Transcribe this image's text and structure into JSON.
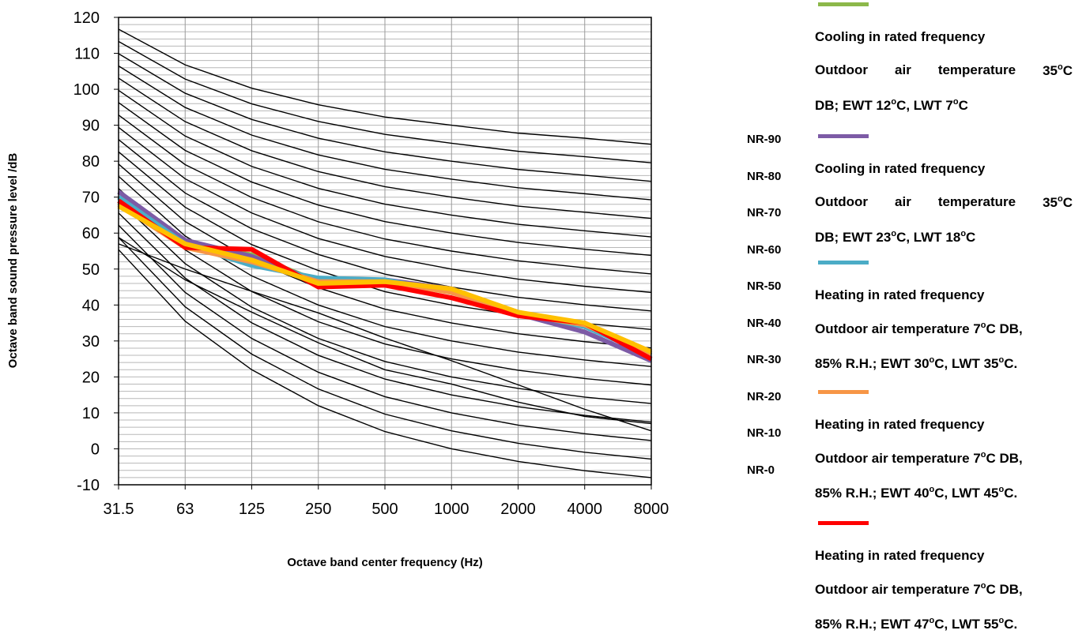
{
  "chart_data": {
    "type": "line",
    "xlabel": "Octave band center frequency (Hz)",
    "ylabel": "Octave band sound pressure level /dB",
    "categories": [
      "31.5",
      "63",
      "125",
      "250",
      "500",
      "1000",
      "2000",
      "4000",
      "8000"
    ],
    "ylim": [
      -10,
      120
    ],
    "y_ticks": [
      -10,
      0,
      10,
      20,
      30,
      40,
      50,
      60,
      70,
      80,
      90,
      100,
      110,
      120
    ],
    "grid": true,
    "legend_position": "right",
    "nr_curves": [
      {
        "name": "NR-0",
        "values": [
          55.4,
          35.5,
          22.0,
          12.0,
          4.8,
          0.0,
          -3.5,
          -6.1,
          -8.0
        ]
      },
      {
        "name": "NR-10",
        "values": [
          62.2,
          43.5,
          30.7,
          21.3,
          14.5,
          10.0,
          6.6,
          4.2,
          2.3
        ]
      },
      {
        "name": "NR-20",
        "values": [
          69.0,
          51.5,
          39.4,
          30.7,
          24.3,
          20.0,
          16.8,
          14.4,
          12.6
        ]
      },
      {
        "name": "NR-30",
        "values": [
          75.8,
          59.2,
          48.1,
          40.0,
          34.0,
          30.0,
          26.9,
          24.7,
          22.9
        ]
      },
      {
        "name": "NR-40",
        "values": [
          82.6,
          67.2,
          56.8,
          49.6,
          43.7,
          40.0,
          37.1,
          34.9,
          33.2
        ]
      },
      {
        "name": "NR-50",
        "values": [
          89.4,
          75.1,
          65.6,
          58.5,
          53.5,
          50.0,
          47.2,
          45.2,
          43.5
        ]
      },
      {
        "name": "NR-60",
        "values": [
          96.3,
          83.0,
          74.2,
          67.8,
          63.2,
          60.0,
          57.4,
          55.5,
          53.8
        ]
      },
      {
        "name": "NR-70",
        "values": [
          103.1,
          91.0,
          82.9,
          77.1,
          72.9,
          70.0,
          67.5,
          65.8,
          64.1
        ]
      },
      {
        "name": "NR-80",
        "values": [
          109.9,
          98.9,
          91.6,
          86.4,
          82.6,
          80.0,
          77.7,
          76.1,
          74.4
        ]
      },
      {
        "name": "NR-90",
        "values": [
          116.7,
          106.8,
          100.3,
          95.7,
          92.3,
          90.0,
          87.8,
          86.4,
          84.7
        ]
      },
      {
        "name": "",
        "values": [
          57.0,
          50.0,
          43.8,
          37.8,
          30.8,
          24.5,
          17.8,
          11.0,
          5.0
        ]
      },
      {
        "name": "",
        "values": [
          58.8,
          47.0,
          38.0,
          29.5,
          22.0,
          18.0,
          13.0,
          9.0,
          7.0
        ]
      }
    ],
    "nr_labels": [
      "NR-90",
      "NR-80",
      "NR-70",
      "NR-60",
      "NR-50",
      "NR-40",
      "NR-30",
      "NR-20",
      "NR-10",
      "NR-0"
    ],
    "series": [
      {
        "name": "Cooling in rated frequency Outdoor air temperature 35°C DB; EWT 12°C, LWT 7°C",
        "color": "#8CB84A",
        "values": [
          68.5,
          56.5,
          54.0,
          46.5,
          46.5,
          44.0,
          38.0,
          34.0,
          26.5
        ]
      },
      {
        "name": "Cooling in rated frequency Outdoor air temperature 35°C DB; EWT 23°C, LWT 18°C",
        "color": "#7D5BA6",
        "values": [
          71.5,
          58.0,
          53.5,
          46.5,
          47.0,
          44.5,
          37.5,
          32.5,
          24.5
        ]
      },
      {
        "name": "Heating in rated frequency Outdoor air temperature 7°C DB, 85% R.H.; EWT 30°C, LWT 35°C.",
        "color": "#4BACC6",
        "values": [
          70.0,
          57.0,
          51.0,
          47.5,
          47.0,
          43.5,
          38.0,
          34.0,
          26.0
        ]
      },
      {
        "name": "Heating in rated frequency Outdoor air temperature 7°C DB, 85% R.H.; EWT 40°C, LWT 45°C.",
        "color": "#F79646",
        "values": [
          68.0,
          56.0,
          52.0,
          46.5,
          46.5,
          43.5,
          37.5,
          34.5,
          26.5
        ]
      },
      {
        "name": "Heating in rated frequency Outdoor air temperature 7°C DB, 85% R.H.; EWT 47°C, LWT 55°C.",
        "color": "#FF0000",
        "values": [
          69.0,
          56.0,
          55.5,
          45.0,
          45.5,
          42.0,
          37.0,
          35.0,
          25.0
        ]
      },
      {
        "name": "",
        "color": "#FFC000",
        "values": [
          67.5,
          57.0,
          52.5,
          46.0,
          46.5,
          44.5,
          38.0,
          35.0,
          27.0
        ]
      }
    ]
  },
  "legend": [
    {
      "color": "#8CB84A",
      "line1": "Cooling in rated frequency",
      "line2": [
        "Outdoor",
        "air",
        "temperature",
        "35",
        "o",
        "C"
      ],
      "line3": [
        "DB; EWT 12",
        "o",
        "C, LWT 7",
        "o",
        "C"
      ]
    },
    {
      "color": "#7D5BA6",
      "line1": "Cooling in rated frequency",
      "line2": [
        "Outdoor",
        "air",
        "temperature",
        "35",
        "o",
        "C"
      ],
      "line3": [
        "DB; EWT 23",
        "o",
        "C, LWT 18",
        "o",
        "C"
      ]
    },
    {
      "color": "#4BACC6",
      "line1": "Heating in rated frequency",
      "line2": [
        "Outdoor air temperature 7",
        "o",
        "C DB,"
      ],
      "line3": [
        "85% R.H.; EWT 30",
        "o",
        "C, LWT 35",
        "o",
        "C."
      ]
    },
    {
      "color": "#F79646",
      "line1": "Heating in rated frequency",
      "line2": [
        "Outdoor air temperature 7",
        "o",
        "C DB,"
      ],
      "line3": [
        "85% R.H.; EWT 40",
        "o",
        "C, LWT 45",
        "o",
        "C."
      ]
    },
    {
      "color": "#FF0000",
      "line1": "Heating in rated frequency",
      "line2": [
        "Outdoor air temperature 7",
        "o",
        "C DB,"
      ],
      "line3": [
        "85% R.H.; EWT 47",
        "o",
        "C, LWT 55",
        "o",
        "C."
      ]
    }
  ]
}
